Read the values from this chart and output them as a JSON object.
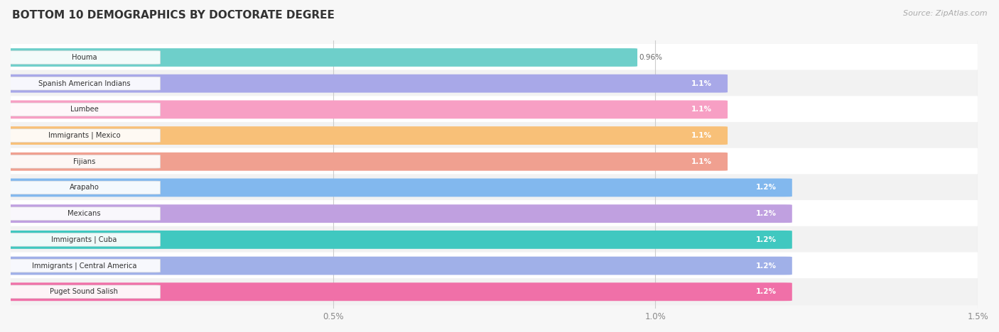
{
  "title": "BOTTOM 10 DEMOGRAPHICS BY DOCTORATE DEGREE",
  "source": "Source: ZipAtlas.com",
  "categories": [
    "Houma",
    "Spanish American Indians",
    "Lumbee",
    "Immigrants | Mexico",
    "Fijians",
    "Arapaho",
    "Mexicans",
    "Immigrants | Cuba",
    "Immigrants | Central America",
    "Puget Sound Salish"
  ],
  "values": [
    0.96,
    1.1,
    1.1,
    1.1,
    1.1,
    1.2,
    1.2,
    1.2,
    1.2,
    1.2
  ],
  "labels": [
    "0.96%",
    "1.1%",
    "1.1%",
    "1.1%",
    "1.1%",
    "1.2%",
    "1.2%",
    "1.2%",
    "1.2%",
    "1.2%"
  ],
  "bar_colors": [
    "#6ECFCA",
    "#A8A8E8",
    "#F79FC4",
    "#F8C078",
    "#F0A090",
    "#82B8EE",
    "#C0A0E0",
    "#40C8C0",
    "#A0B0E8",
    "#F070A8"
  ],
  "xlim": [
    0,
    1.5
  ],
  "xticks": [
    0.0,
    0.5,
    1.0,
    1.5
  ],
  "xticklabels": [
    "",
    "0.5%",
    "1.0%",
    "1.5%"
  ],
  "background_color": "#f7f7f7",
  "row_bg_colors": [
    "#ffffff",
    "#f2f2f2"
  ],
  "label_white_threshold": 1.05
}
